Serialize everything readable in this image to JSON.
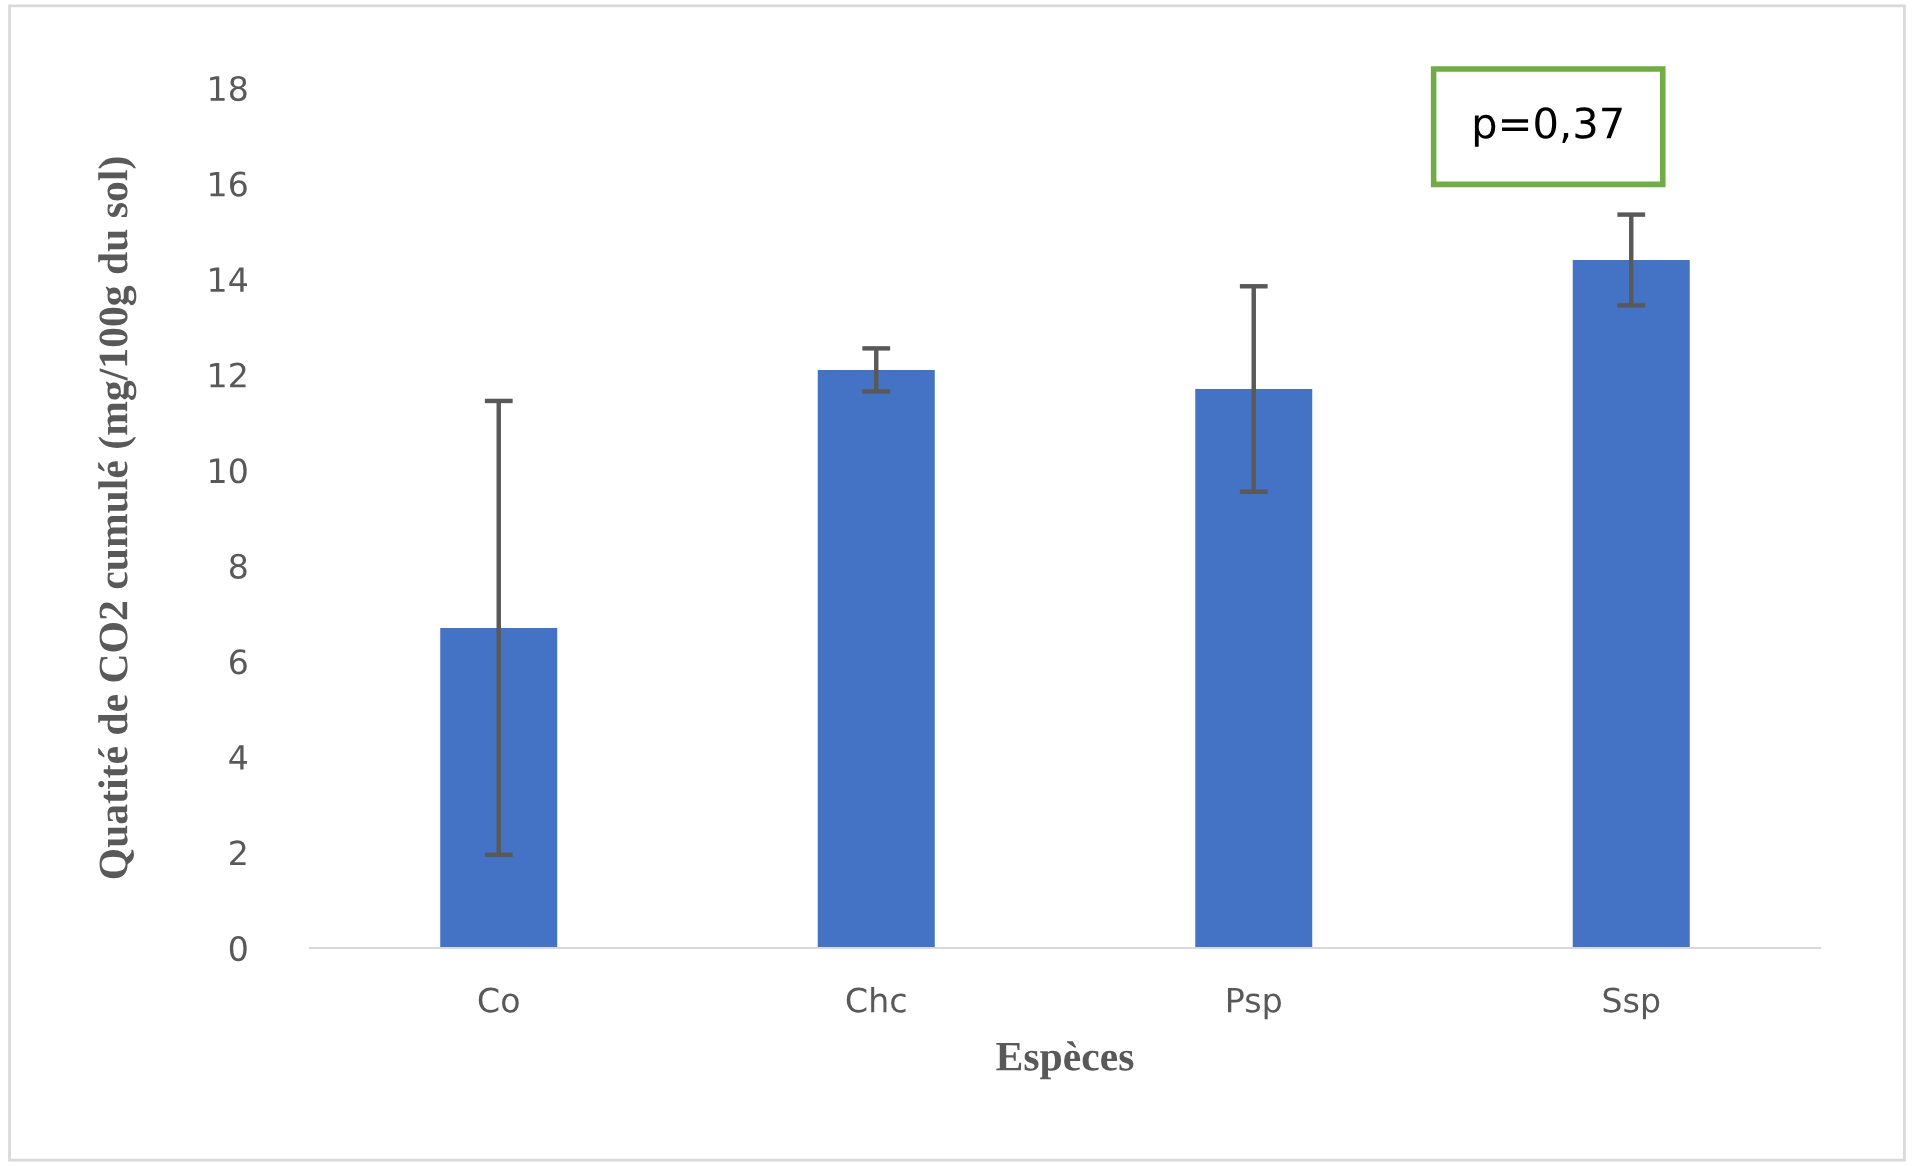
{
  "chart_data": {
    "type": "bar",
    "xlabel": "Espèces",
    "ylabel": "Quatité de CO2 cumulé (mg/100g du sol)",
    "categories": [
      "Co",
      "Chc",
      "Psp",
      "Ssp"
    ],
    "values": [
      6.7,
      12.1,
      11.7,
      14.4
    ],
    "errors": [
      4.75,
      0.45,
      2.15,
      0.95
    ],
    "color": "#4472c4",
    "ylim": [
      0,
      18
    ],
    "yticks": [
      0,
      2,
      4,
      6,
      8,
      10,
      12,
      14,
      16,
      18
    ],
    "annotations": [
      "p=0,37"
    ],
    "grid": false
  }
}
